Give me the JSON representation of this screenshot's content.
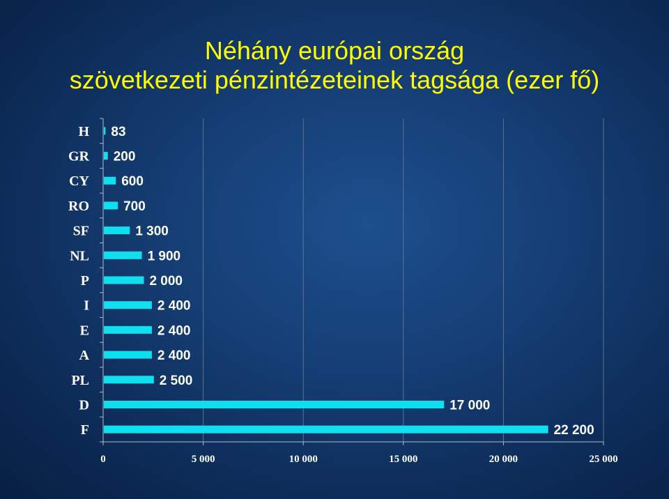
{
  "title": {
    "line1": "Néhány európai ország",
    "line2": "szövetkezeti pénzintézeteinek tagsága (ezer fő)"
  },
  "colors": {
    "bar": "#0fe0f0",
    "title": "#ffff00",
    "background": "#153d73"
  },
  "chart_data": {
    "type": "bar",
    "orientation": "horizontal",
    "title": "Néhány európai ország szövetkezeti pénzintézeteinek tagsága (ezer fő)",
    "categories": [
      "H",
      "GR",
      "CY",
      "RO",
      "SF",
      "NL",
      "P",
      "I",
      "E",
      "A",
      "PL",
      "D",
      "F"
    ],
    "values": [
      83,
      200,
      600,
      700,
      1300,
      1900,
      2000,
      2400,
      2400,
      2400,
      2500,
      17000,
      22200
    ],
    "value_labels": [
      "83",
      "200",
      "600",
      "700",
      "1 300",
      "1 900",
      "2 000",
      "2 400",
      "2 400",
      "2 400",
      "2 500",
      "17 000",
      "22 200"
    ],
    "xlim": [
      0,
      25000
    ],
    "x_ticks": [
      0,
      5000,
      10000,
      15000,
      20000,
      25000
    ],
    "x_tick_labels": [
      "0",
      "5 000",
      "10 000",
      "15 000",
      "20 000",
      "25 000"
    ],
    "grid": true,
    "legend": "none"
  }
}
